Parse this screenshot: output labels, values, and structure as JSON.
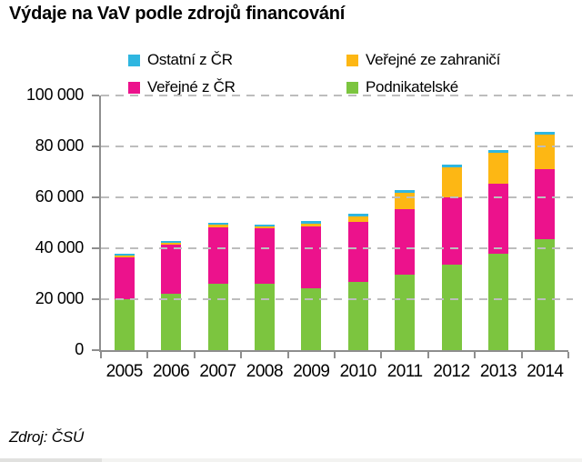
{
  "source_note": "Zdroj: ČSÚ",
  "chart_data": {
    "type": "bar",
    "stacked": true,
    "title": "Výdaje na VaV podle zdrojů financování",
    "categories": [
      "2005",
      "2006",
      "2007",
      "2008",
      "2009",
      "2010",
      "2011",
      "2012",
      "2013",
      "2014"
    ],
    "series": [
      {
        "name": "Podnikatelské",
        "key": "podnikatelske",
        "color": "#7CC53F",
        "values": [
          20000,
          22000,
          26000,
          26100,
          24400,
          26800,
          29800,
          33400,
          37800,
          43500
        ]
      },
      {
        "name": "Veřejné z ČR",
        "key": "verejne-z-cr",
        "color": "#EC128C",
        "values": [
          16500,
          19400,
          22200,
          21900,
          24400,
          23500,
          25600,
          26500,
          27400,
          27600
        ]
      },
      {
        "name": "Veřejné ze zahraničí",
        "key": "verejne-ze-zahranici",
        "color": "#FDB714",
        "values": [
          800,
          700,
          900,
          800,
          1100,
          2100,
          6400,
          11700,
          12100,
          13700
        ]
      },
      {
        "name": "Ostatní z ČR",
        "key": "ostatni-z-cr",
        "color": "#2FB6E0",
        "values": [
          700,
          800,
          700,
          800,
          900,
          900,
          900,
          900,
          900,
          1000
        ]
      }
    ],
    "legend": [
      {
        "label": "Ostatní z ČR",
        "color": "#2FB6E0",
        "key": "ostatni-z-cr"
      },
      {
        "label": "Veřejné ze zahraničí",
        "color": "#FDB714",
        "key": "verejne-ze-zahranici"
      },
      {
        "label": "Veřejné z ČR",
        "color": "#EC128C",
        "key": "verejne-z-cr"
      },
      {
        "label": "Podnikatelské",
        "color": "#7CC53F",
        "key": "podnikatelske"
      }
    ],
    "legend_position": "top",
    "xlabel": "",
    "ylabel": "",
    "ylim": [
      0,
      100000
    ],
    "y_ticks": [
      {
        "label": "100 000",
        "value": 100000
      },
      {
        "label": "80 000",
        "value": 80000
      },
      {
        "label": "60 000",
        "value": 60000
      },
      {
        "label": "40 000",
        "value": 40000
      },
      {
        "label": "20 000",
        "value": 20000
      },
      {
        "label": "0",
        "value": 0
      }
    ],
    "grid": "horizontal-dashed",
    "grid_color": "#BDBDBD",
    "axis_color": "#8E8E8E"
  }
}
